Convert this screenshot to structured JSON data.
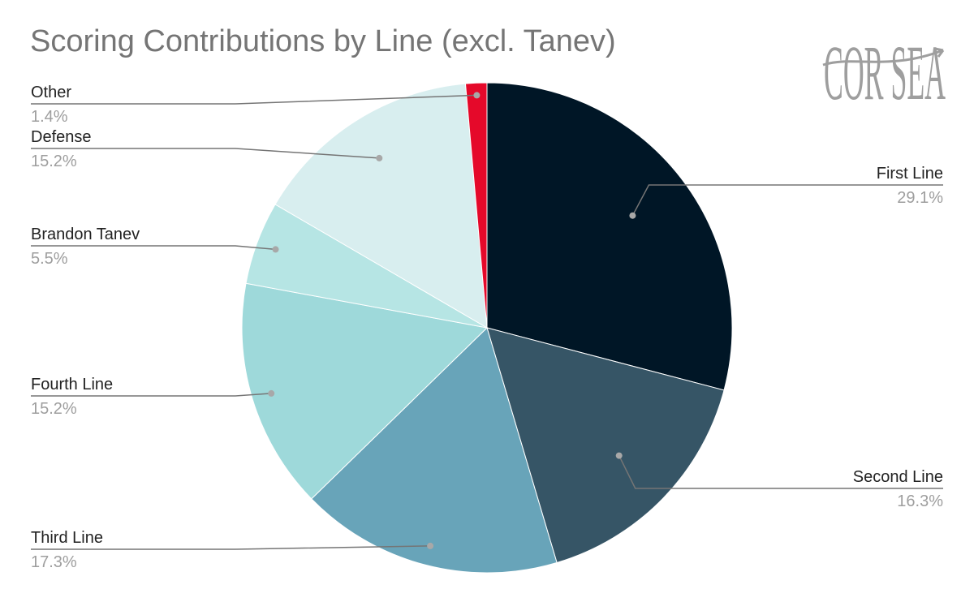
{
  "chart_data": {
    "type": "pie",
    "title": "Scoring Contributions by Line (excl. Tanev)",
    "start_angle": "12 o'clock",
    "direction": "clockwise",
    "legend": "none (leader-line labels)",
    "slices": [
      {
        "label": "First Line",
        "value": 29.1,
        "display": "29.1%",
        "color": "#001626"
      },
      {
        "label": "Second Line",
        "value": 16.3,
        "display": "16.3%",
        "color": "#365566"
      },
      {
        "label": "Third Line",
        "value": 17.3,
        "display": "17.3%",
        "color": "#68a4b9"
      },
      {
        "label": "Fourth Line",
        "value": 15.2,
        "display": "15.2%",
        "color": "#9ed9da"
      },
      {
        "label": "Brandon Tanev",
        "value": 5.5,
        "display": "5.5%",
        "color": "#b6e5e4"
      },
      {
        "label": "Defense",
        "value": 15.2,
        "display": "15.2%",
        "color": "#d8eeef"
      },
      {
        "label": "Other",
        "value": 1.4,
        "display": "1.4%",
        "color": "#e5092a"
      }
    ]
  },
  "logo": {
    "text": "COR SEA",
    "color": "#9e9e9e"
  }
}
